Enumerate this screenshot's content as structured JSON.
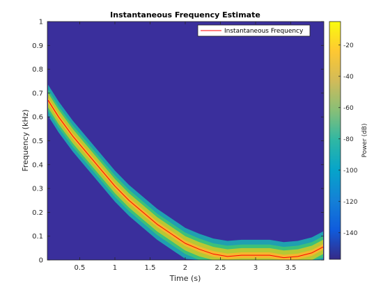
{
  "chart_data": {
    "type": "heatmap",
    "title": "Instantaneous Frequency Estimate",
    "xlabel": "Time (s)",
    "ylabel": "Frequency (kHz)",
    "xlim": [
      0.04,
      3.97
    ],
    "ylim": [
      0,
      1
    ],
    "xticks": [
      0.5,
      1,
      1.5,
      2,
      2.5,
      3,
      3.5
    ],
    "xtick_labels": [
      "0.5",
      "1",
      "1.5",
      "2",
      "2.5",
      "3",
      "3.5"
    ],
    "yticks": [
      0,
      0.1,
      0.2,
      0.3,
      0.4,
      0.5,
      0.6,
      0.7,
      0.8,
      0.9,
      1
    ],
    "ytick_labels": [
      "0",
      "0.1",
      "0.2",
      "0.3",
      "0.4",
      "0.5",
      "0.6",
      "0.7",
      "0.8",
      "0.9",
      "1"
    ],
    "legend": {
      "placement": "top-right",
      "entries": [
        "Instantaneous Frequency"
      ]
    },
    "series": [
      {
        "name": "Instantaneous Frequency",
        "color": "#ff0000",
        "x": [
          0.05,
          0.2,
          0.4,
          0.6,
          0.8,
          1.0,
          1.2,
          1.4,
          1.6,
          1.8,
          2.0,
          2.2,
          2.4,
          2.6,
          2.8,
          3.0,
          3.2,
          3.4,
          3.6,
          3.8,
          3.96
        ],
        "y": [
          0.67,
          0.6,
          0.52,
          0.45,
          0.38,
          0.31,
          0.25,
          0.2,
          0.15,
          0.11,
          0.07,
          0.045,
          0.025,
          0.015,
          0.02,
          0.02,
          0.02,
          0.01,
          0.015,
          0.03,
          0.055
        ]
      }
    ],
    "power_band": {
      "description": "spectrogram power ridge following the instantaneous frequency",
      "half_widths_khz": [
        0.065,
        0.045,
        0.03,
        0.012
      ],
      "band_colors": [
        "#1fa0b0",
        "#3cc07a",
        "#b8c833",
        "#f5b52e"
      ]
    },
    "background_color": "#3a2f9c",
    "colorbar": {
      "label": "Power (dB)",
      "ticks": [
        -20,
        -40,
        -60,
        -80,
        -100,
        -120,
        -140
      ],
      "tick_labels": [
        "-20",
        "-40",
        "-60",
        "-80",
        "-100",
        "-120",
        "-140"
      ],
      "range": [
        -157,
        -5
      ],
      "colormap": [
        "#352a87",
        "#0f5cdd",
        "#1481d6",
        "#06a4ca",
        "#2eb7a4",
        "#87bf77",
        "#d1bb59",
        "#fec832",
        "#f9fb0e"
      ]
    }
  }
}
